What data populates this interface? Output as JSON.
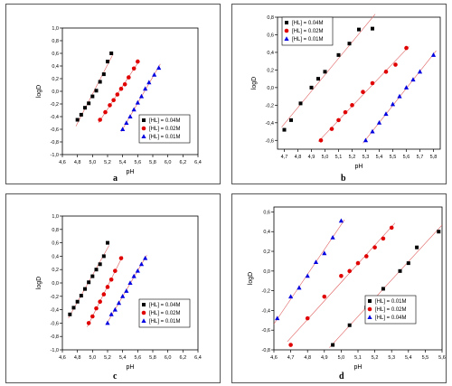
{
  "chart_data": [
    {
      "panel_label": "a",
      "type": "scatter",
      "xlabel": "pH",
      "ylabel": "logD",
      "xlim": [
        4.6,
        6.4
      ],
      "ylim": [
        -1.0,
        1.0
      ],
      "xticks": [
        "4,6",
        "4,8",
        "5,0",
        "5,2",
        "5,4",
        "5,6",
        "5,8",
        "6,0",
        "6,2",
        "6,4"
      ],
      "yticks": [
        "-1,0",
        "-0,8",
        "-0,6",
        "-0,4",
        "-0,2",
        "0,0",
        "0,2",
        "0,4",
        "0,6",
        "0,8",
        "1,0"
      ],
      "legend_position": "bottom-right",
      "series": [
        {
          "name": "[HL] = 0.04M",
          "marker": "square",
          "color": "#000000",
          "x": [
            4.8,
            4.85,
            4.9,
            4.95,
            5.0,
            5.05,
            5.1,
            5.15,
            5.2,
            5.25
          ],
          "y": [
            -0.45,
            -0.37,
            -0.26,
            -0.19,
            -0.08,
            0.01,
            0.15,
            0.27,
            0.47,
            0.6
          ]
        },
        {
          "name": "[HL] = 0.02M",
          "marker": "circle",
          "color": "#e00000",
          "x": [
            5.1,
            5.17,
            5.23,
            5.28,
            5.33,
            5.38,
            5.43,
            5.48,
            5.55,
            5.6
          ],
          "y": [
            -0.45,
            -0.33,
            -0.22,
            -0.14,
            -0.05,
            0.04,
            0.11,
            0.22,
            0.36,
            0.47
          ]
        },
        {
          "name": "[HL] = 0.01M",
          "marker": "triangle",
          "color": "#0000e0",
          "x": [
            5.4,
            5.45,
            5.5,
            5.55,
            5.6,
            5.65,
            5.7,
            5.75,
            5.82,
            5.88
          ],
          "y": [
            -0.6,
            -0.5,
            -0.4,
            -0.29,
            -0.18,
            -0.08,
            0.04,
            0.14,
            0.26,
            0.37
          ]
        }
      ]
    },
    {
      "panel_label": "b",
      "type": "scatter",
      "xlabel": "pH",
      "ylabel": "logD",
      "xlim": [
        4.65,
        5.85
      ],
      "ylim": [
        -0.7,
        0.8
      ],
      "xticks": [
        "4,7",
        "4,8",
        "4,9",
        "5,0",
        "5,1",
        "5,2",
        "5,3",
        "5,4",
        "5,5",
        "5,6",
        "5,7",
        "5,8"
      ],
      "yticks": [
        "-0,6",
        "-0,4",
        "-0,2",
        "0,0",
        "0,2",
        "0,4",
        "0,6",
        "0,8"
      ],
      "legend_position": "top-left",
      "series": [
        {
          "name": "[HL] = 0.04M",
          "marker": "square",
          "color": "#000000",
          "x": [
            4.7,
            4.75,
            4.82,
            4.9,
            4.95,
            5.0,
            5.1,
            5.18,
            5.25,
            5.35
          ],
          "y": [
            -0.48,
            -0.37,
            -0.18,
            0.0,
            0.1,
            0.18,
            0.37,
            0.5,
            0.66,
            0.67
          ]
        },
        {
          "name": "[HL] = 0.02M",
          "marker": "circle",
          "color": "#e00000",
          "x": [
            4.97,
            5.05,
            5.1,
            5.15,
            5.2,
            5.28,
            5.35,
            5.45,
            5.52,
            5.6
          ],
          "y": [
            -0.6,
            -0.47,
            -0.37,
            -0.28,
            -0.2,
            -0.05,
            0.05,
            0.18,
            0.26,
            0.45
          ]
        },
        {
          "name": "[HL] = 0.01M",
          "marker": "triangle",
          "color": "#0000e0",
          "x": [
            5.3,
            5.35,
            5.4,
            5.45,
            5.5,
            5.55,
            5.6,
            5.65,
            5.7,
            5.8
          ],
          "y": [
            -0.6,
            -0.5,
            -0.4,
            -0.3,
            -0.19,
            -0.1,
            0.0,
            0.09,
            0.18,
            0.37
          ]
        }
      ]
    },
    {
      "panel_label": "c",
      "type": "scatter",
      "xlabel": "pH",
      "ylabel": "logD",
      "xlim": [
        4.6,
        6.4
      ],
      "ylim": [
        -1.0,
        1.0
      ],
      "xticks": [
        "4,6",
        "4,8",
        "5,0",
        "5,2",
        "5,4",
        "5,6",
        "5,8",
        "6,0",
        "6,2",
        "6,4"
      ],
      "yticks": [
        "-1,0",
        "-0,8",
        "-0,6",
        "-0,4",
        "-0,2",
        "0,0",
        "0,2",
        "0,4",
        "0,6",
        "0,8",
        "1,0"
      ],
      "legend_position": "bottom-right",
      "series": [
        {
          "name": "[HL] = 0.04M",
          "marker": "square",
          "color": "#000000",
          "x": [
            4.7,
            4.75,
            4.8,
            4.85,
            4.9,
            4.95,
            5.0,
            5.05,
            5.1,
            5.15,
            5.2
          ],
          "y": [
            -0.47,
            -0.37,
            -0.28,
            -0.19,
            -0.09,
            0.01,
            0.1,
            0.2,
            0.28,
            0.4,
            0.6
          ]
        },
        {
          "name": "[HL] = 0.02M",
          "marker": "circle",
          "color": "#e00000",
          "x": [
            4.95,
            5.0,
            5.05,
            5.1,
            5.15,
            5.2,
            5.25,
            5.3,
            5.38
          ],
          "y": [
            -0.6,
            -0.5,
            -0.38,
            -0.28,
            -0.17,
            -0.06,
            0.05,
            0.18,
            0.37
          ]
        },
        {
          "name": "[HL] = 0.01M",
          "marker": "triangle",
          "color": "#0000e0",
          "x": [
            5.2,
            5.25,
            5.3,
            5.35,
            5.4,
            5.45,
            5.5,
            5.55,
            5.6,
            5.65,
            5.7
          ],
          "y": [
            -0.6,
            -0.47,
            -0.4,
            -0.3,
            -0.2,
            -0.12,
            0.0,
            0.1,
            0.18,
            0.28,
            0.37
          ]
        }
      ]
    },
    {
      "panel_label": "d",
      "type": "scatter",
      "xlabel": "pH",
      "ylabel": "logD",
      "xlim": [
        4.6,
        5.6
      ],
      "ylim": [
        -0.8,
        0.65
      ],
      "xticks": [
        "4,6",
        "4,7",
        "4,8",
        "4,9",
        "5,0",
        "5,1",
        "5,2",
        "5,3",
        "5,4",
        "5,5",
        "5,6"
      ],
      "yticks": [
        "-0,8",
        "-0,6",
        "-0,4",
        "-0,2",
        "0,0",
        "0,2",
        "0,4",
        "0,6"
      ],
      "legend_position": "bottom-right",
      "series": [
        {
          "name": "[HL] = 0.01M",
          "marker": "square",
          "color": "#000000",
          "x": [
            4.95,
            5.05,
            5.15,
            5.25,
            5.35,
            5.4,
            5.45,
            5.58
          ],
          "y": [
            -0.75,
            -0.55,
            -0.37,
            -0.18,
            0.0,
            0.08,
            0.24,
            0.4
          ]
        },
        {
          "name": "[HL] = 0.02M",
          "marker": "circle",
          "color": "#e00000",
          "x": [
            4.7,
            4.8,
            4.9,
            5.0,
            5.05,
            5.1,
            5.15,
            5.2,
            5.25,
            5.3
          ],
          "y": [
            -0.75,
            -0.48,
            -0.26,
            -0.05,
            0.0,
            0.08,
            0.15,
            0.24,
            0.33,
            0.44
          ]
        },
        {
          "name": "[HL] = 0.04M",
          "marker": "triangle",
          "color": "#0000e0",
          "x": [
            4.62,
            4.7,
            4.75,
            4.8,
            4.85,
            4.9,
            4.95,
            5.0
          ],
          "y": [
            -0.48,
            -0.26,
            -0.17,
            -0.05,
            0.09,
            0.18,
            0.34,
            0.51
          ]
        }
      ]
    }
  ]
}
